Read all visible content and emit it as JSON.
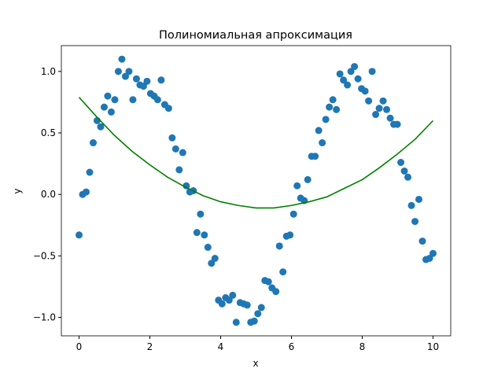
{
  "chart_data": {
    "type": "scatter",
    "title": "Полиномиальная апроксимация",
    "xlabel": "x",
    "ylabel": "y",
    "xlim": [
      -0.5,
      10.5
    ],
    "ylim": [
      -1.15,
      1.21
    ],
    "xticks": [
      0,
      2,
      4,
      6,
      8,
      10
    ],
    "yticks": [
      {
        "value": -1,
        "label": "−1.0"
      },
      {
        "value": -0.5,
        "label": "−0.5"
      },
      {
        "value": 0,
        "label": "0.0"
      },
      0.5,
      {
        "value": 1,
        "label": "1.0"
      }
    ],
    "grid": false,
    "series": [
      {
        "type": "scatter",
        "color": "#1f77b4",
        "x": [
          0,
          0.1,
          0.2,
          0.3,
          0.4,
          0.51,
          0.61,
          0.71,
          0.81,
          0.91,
          1.01,
          1.11,
          1.21,
          1.31,
          1.41,
          1.52,
          1.62,
          1.72,
          1.82,
          1.92,
          2.02,
          2.12,
          2.22,
          2.32,
          2.42,
          2.53,
          2.63,
          2.73,
          2.83,
          2.93,
          3.03,
          3.13,
          3.23,
          3.33,
          3.43,
          3.54,
          3.64,
          3.74,
          3.84,
          3.94,
          4.04,
          4.14,
          4.24,
          4.34,
          4.44,
          4.55,
          4.65,
          4.75,
          4.85,
          4.95,
          5.05,
          5.15,
          5.25,
          5.35,
          5.45,
          5.56,
          5.66,
          5.76,
          5.86,
          5.96,
          6.06,
          6.16,
          6.26,
          6.36,
          6.46,
          6.57,
          6.67,
          6.77,
          6.87,
          6.97,
          7.07,
          7.17,
          7.27,
          7.37,
          7.47,
          7.58,
          7.68,
          7.78,
          7.88,
          7.98,
          8.08,
          8.18,
          8.28,
          8.38,
          8.48,
          8.59,
          8.69,
          8.79,
          8.89,
          8.99,
          9.09,
          9.19,
          9.29,
          9.39,
          9.49,
          9.6,
          9.7,
          9.8,
          9.9,
          10.0
        ],
        "y": [
          -0.33,
          0.0,
          0.02,
          0.18,
          0.42,
          0.6,
          0.55,
          0.71,
          0.8,
          0.67,
          0.77,
          1.0,
          1.1,
          0.96,
          1.0,
          0.77,
          0.94,
          0.89,
          0.88,
          0.92,
          0.82,
          0.8,
          0.77,
          0.93,
          0.73,
          0.7,
          0.46,
          0.37,
          0.2,
          0.34,
          0.07,
          0.02,
          0.03,
          -0.31,
          -0.16,
          -0.33,
          -0.43,
          -0.56,
          -0.52,
          -0.86,
          -0.89,
          -0.84,
          -0.86,
          -0.82,
          -1.04,
          -0.88,
          -0.89,
          -0.9,
          -1.04,
          -1.03,
          -0.97,
          -0.92,
          -0.7,
          -0.71,
          -0.76,
          -0.79,
          -0.42,
          -0.63,
          -0.34,
          -0.33,
          -0.16,
          0.07,
          -0.03,
          -0.05,
          0.12,
          0.31,
          0.31,
          0.52,
          0.42,
          0.61,
          0.71,
          0.77,
          0.69,
          0.98,
          0.93,
          0.89,
          1.0,
          1.04,
          0.94,
          0.86,
          0.84,
          0.76,
          1.0,
          0.65,
          0.7,
          0.76,
          0.69,
          0.62,
          0.57,
          0.57,
          0.26,
          0.19,
          0.14,
          -0.09,
          -0.22,
          -0.04,
          -0.38,
          -0.53,
          -0.52,
          -0.48
        ]
      },
      {
        "type": "line",
        "color": "#008000",
        "x": [
          0,
          0.5,
          1,
          1.5,
          2,
          2.5,
          3,
          3.5,
          4,
          4.5,
          5,
          5.5,
          6,
          6.5,
          7,
          7.5,
          8,
          8.5,
          9,
          9.5,
          10
        ],
        "y": [
          0.79,
          0.63,
          0.48,
          0.35,
          0.24,
          0.14,
          0.06,
          -0.01,
          -0.06,
          -0.09,
          -0.11,
          -0.11,
          -0.09,
          -0.06,
          -0.02,
          0.05,
          0.12,
          0.22,
          0.33,
          0.45,
          0.6
        ]
      }
    ]
  }
}
